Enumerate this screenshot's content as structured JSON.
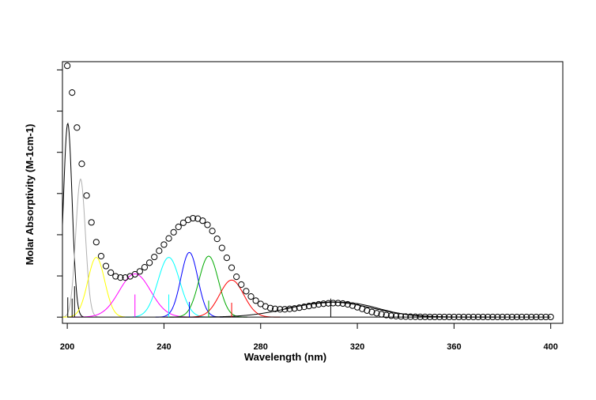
{
  "chart_data": {
    "type": "line",
    "title": "",
    "xlabel": "Wavelength (nm)",
    "ylabel": "Molar Absorptivity (M-1cm-1)",
    "xlim": [
      198,
      405
    ],
    "ylim": [
      -1500,
      62000
    ],
    "x_ticks": [
      200,
      240,
      280,
      320,
      360,
      400
    ],
    "y_ticks": [
      0,
      10000,
      20000,
      30000,
      40000,
      50000,
      60000
    ],
    "y_tick_labels_shown": false,
    "grid": false,
    "legend": "none",
    "observed_spectrum": {
      "x": [
        200,
        202,
        204,
        206,
        208,
        210,
        212,
        214,
        216,
        218,
        220,
        222,
        224,
        226,
        228,
        230,
        232,
        234,
        236,
        238,
        240,
        242,
        244,
        246,
        248,
        250,
        252,
        254,
        256,
        258,
        260,
        262,
        264,
        266,
        268,
        270,
        272,
        274,
        276,
        278,
        280,
        282,
        284,
        286,
        288,
        290,
        292,
        294,
        296,
        298,
        300,
        302,
        304,
        306,
        308,
        310,
        312,
        314,
        316,
        318,
        320,
        322,
        324,
        326,
        328,
        330,
        332,
        334,
        336,
        338,
        340,
        342,
        344,
        346,
        348,
        350,
        352,
        354,
        356,
        358,
        360,
        362,
        364,
        366,
        368,
        370,
        372,
        374,
        376,
        378,
        380,
        382,
        384,
        386,
        388,
        390,
        392,
        394,
        396,
        398,
        400
      ],
      "y": [
        61000,
        54500,
        46000,
        37200,
        29500,
        23000,
        18200,
        14800,
        12400,
        10800,
        9900,
        9600,
        9600,
        9900,
        10400,
        11100,
        12100,
        13200,
        14600,
        16100,
        17600,
        19100,
        20600,
        21900,
        22900,
        23600,
        24000,
        23900,
        23400,
        22400,
        20900,
        19000,
        16800,
        14400,
        12000,
        9800,
        7900,
        6300,
        5000,
        4000,
        3200,
        2600,
        2200,
        2000,
        1900,
        1900,
        2000,
        2100,
        2300,
        2500,
        2700,
        2900,
        3100,
        3250,
        3350,
        3400,
        3400,
        3300,
        3100,
        2800,
        2400,
        2000,
        1600,
        1250,
        950,
        700,
        500,
        350,
        250,
        180,
        130,
        100,
        80,
        70,
        60,
        50,
        50,
        50,
        50,
        50,
        50,
        50,
        50,
        50,
        50,
        50,
        50,
        50,
        50,
        50,
        50,
        50,
        50,
        50,
        50,
        50,
        50,
        50,
        50,
        50,
        50
      ]
    },
    "fitted_envelope": {
      "color": "#000000",
      "x": [
        290,
        295,
        300,
        305,
        310,
        315,
        320,
        325,
        330,
        335,
        340,
        345,
        350,
        355,
        360
      ],
      "y": [
        2100,
        2600,
        3100,
        3450,
        3650,
        3600,
        3300,
        2700,
        1900,
        1200,
        650,
        300,
        120,
        50,
        20
      ]
    },
    "bands": [
      {
        "color": "#000000",
        "center": 200.2,
        "width": 1.8,
        "height": 47000,
        "stick": 4800
      },
      {
        "color": "#b0b0b0",
        "center": 205.5,
        "width": 2.0,
        "height": 33500
      },
      {
        "color": "#ffff00",
        "center": 212,
        "width": 3.5,
        "height": 14500
      },
      {
        "color": "#ff00ff",
        "center": 228,
        "width": 6.5,
        "height": 10500,
        "stick": 5500
      },
      {
        "color": "#00ffff",
        "center": 242,
        "width": 4.5,
        "height": 14500,
        "stick": 5500
      },
      {
        "color": "#0000ff",
        "center": 250.5,
        "width": 3.5,
        "height": 15700,
        "stick": 3700
      },
      {
        "color": "#00aa00",
        "center": 258.5,
        "width": 4.0,
        "height": 14800,
        "stick": 4000
      },
      {
        "color": "#ff0000",
        "center": 268,
        "width": 5.0,
        "height": 9000,
        "stick": 3500
      },
      {
        "color": "#000000",
        "center": 309,
        "width": 17,
        "height": 3650,
        "stick": 4500
      }
    ],
    "extra_sticks": [
      {
        "color": "#000000",
        "x": 203,
        "height": 7500
      },
      {
        "color": "#000000",
        "x": 202,
        "height": 4500
      }
    ]
  }
}
